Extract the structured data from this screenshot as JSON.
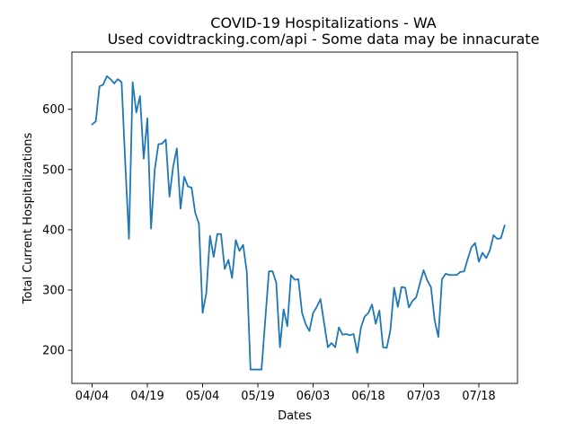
{
  "chart_data": {
    "type": "line",
    "title": "COVID-19 Hospitalizations - WA",
    "subtitle": "Used covidtracking.com/api - Some data may be innacurate",
    "xlabel": "Dates",
    "ylabel": "Total Current Hospitalizations",
    "x_start": "04/04",
    "xlim": [
      -5.5,
      115.5
    ],
    "ylim": [
      145,
      695
    ],
    "grid": false,
    "x_ticks": [
      {
        "x": 0,
        "label": "04/04"
      },
      {
        "x": 15,
        "label": "04/19"
      },
      {
        "x": 30,
        "label": "05/04"
      },
      {
        "x": 45,
        "label": "05/19"
      },
      {
        "x": 60,
        "label": "06/03"
      },
      {
        "x": 75,
        "label": "06/18"
      },
      {
        "x": 90,
        "label": "07/03"
      },
      {
        "x": 105,
        "label": "07/18"
      }
    ],
    "y_ticks": [
      200,
      300,
      400,
      500,
      600
    ],
    "color": "#1f77b4",
    "series": [
      {
        "name": "",
        "values": [
          575,
          580,
          638,
          641,
          655,
          650,
          643,
          650,
          645,
          510,
          385,
          645,
          595,
          622,
          518,
          585,
          402,
          500,
          542,
          543,
          550,
          455,
          505,
          535,
          435,
          488,
          472,
          470,
          428,
          410,
          262,
          295,
          390,
          355,
          393,
          393,
          335,
          350,
          320,
          383,
          365,
          375,
          330,
          168,
          168,
          168,
          168,
          250,
          331,
          331,
          312,
          205,
          268,
          240,
          325,
          317,
          318,
          262,
          243,
          232,
          262,
          272,
          285,
          245,
          205,
          212,
          205,
          238,
          226,
          227,
          225,
          227,
          196,
          238,
          256,
          262,
          276,
          244,
          266,
          205,
          204,
          234,
          304,
          272,
          305,
          304,
          271,
          282,
          288,
          311,
          333,
          316,
          305,
          250,
          222,
          318,
          327,
          325,
          325,
          325,
          330,
          331,
          352,
          371,
          378,
          347,
          362,
          353,
          366,
          391,
          385,
          386,
          407
        ]
      }
    ]
  }
}
